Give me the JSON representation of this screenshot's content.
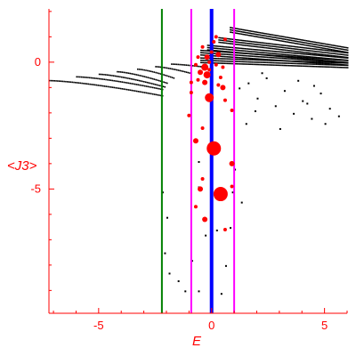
{
  "chart_data": {
    "type": "scatter",
    "title": "",
    "xlabel": "E",
    "ylabel": "<J3>",
    "xlim": [
      -7.2,
      6
    ],
    "ylim": [
      -9.9,
      2.1
    ],
    "x_ticks": [
      -5,
      0,
      5
    ],
    "x_tick_labels": [
      "-5",
      "0",
      "5"
    ],
    "y_ticks": [
      0,
      -5
    ],
    "y_tick_labels": [
      "0",
      "-5"
    ],
    "grid": false,
    "legend": "none",
    "colors": {
      "axis": "#ff0000",
      "black_points": "#000000",
      "red_points": "#ff0000",
      "line_green": "#008000",
      "line_magenta": "#ff00ff",
      "line_blue": "#0000ff"
    },
    "vertical_lines": [
      {
        "x": -2.2,
        "color": "#008000"
      },
      {
        "x": -0.9,
        "color": "#ff00ff"
      },
      {
        "x": 0.0,
        "color": "#0000ff"
      },
      {
        "x": 1.0,
        "color": "#ff00ff"
      }
    ],
    "black_fans": [
      {
        "x_start": -7.2,
        "x_end": -2.2,
        "y_start": -0.7,
        "y_end": -1.3
      },
      {
        "x_start": -6.0,
        "x_end": -2.2,
        "y_start": -0.55,
        "y_end": -1.05
      },
      {
        "x_start": -5.0,
        "x_end": -2.1,
        "y_start": -0.45,
        "y_end": -0.95
      },
      {
        "x_start": -4.2,
        "x_end": -2.0,
        "y_start": -0.35,
        "y_end": -0.8
      },
      {
        "x_start": -3.3,
        "x_end": -1.7,
        "y_start": -0.25,
        "y_end": -0.6
      },
      {
        "x_start": -2.5,
        "x_end": -1.0,
        "y_start": -0.15,
        "y_end": -0.4
      },
      {
        "x_start": -1.8,
        "x_end": -0.5,
        "y_start": -0.05,
        "y_end": -0.15
      }
    ],
    "black_bands": [
      {
        "x_start": -0.5,
        "x_end": 6.0,
        "y_start": 0.4,
        "y_end": 0.0
      },
      {
        "x_start": -0.2,
        "x_end": 6.0,
        "y_start": 0.6,
        "y_end": 0.1
      },
      {
        "x_start": 0.3,
        "x_end": 6.0,
        "y_start": 0.9,
        "y_end": 0.3
      },
      {
        "x_start": 0.8,
        "x_end": 6.0,
        "y_start": 1.3,
        "y_end": 0.5
      },
      {
        "x_start": -0.5,
        "x_end": 6.0,
        "y_start": 0.1,
        "y_end": -0.1
      }
    ],
    "black_scatter": [
      [
        1.2,
        -1.0
      ],
      [
        1.6,
        -0.8
      ],
      [
        2.0,
        -1.4
      ],
      [
        2.4,
        -0.6
      ],
      [
        2.8,
        -1.7
      ],
      [
        3.2,
        -1.1
      ],
      [
        3.6,
        -2.0
      ],
      [
        4.0,
        -1.5
      ],
      [
        4.4,
        -2.2
      ],
      [
        4.8,
        -1.2
      ],
      [
        5.2,
        -1.8
      ],
      [
        5.6,
        -2.1
      ],
      [
        1.5,
        -2.4
      ],
      [
        3.0,
        -2.6
      ],
      [
        4.5,
        -0.9
      ],
      [
        2.2,
        -0.4
      ],
      [
        3.8,
        -0.7
      ],
      [
        5.0,
        -2.4
      ],
      [
        1.9,
        -1.9
      ],
      [
        4.2,
        -1.6
      ],
      [
        -2.2,
        -5.1
      ],
      [
        -2.0,
        -6.1
      ],
      [
        -2.1,
        -7.5
      ],
      [
        -1.9,
        -8.3
      ],
      [
        -1.2,
        -9.0
      ],
      [
        -0.9,
        -7.8
      ],
      [
        -0.6,
        -9.0
      ],
      [
        -0.6,
        -4.9
      ],
      [
        -0.6,
        -3.9
      ],
      [
        0.4,
        -9.1
      ],
      [
        0.9,
        -5.1
      ],
      [
        0.8,
        -6.5
      ],
      [
        1.3,
        -5.5
      ],
      [
        1.0,
        -4.2
      ],
      [
        -1.5,
        -8.6
      ],
      [
        -0.3,
        -6.8
      ],
      [
        0.2,
        -6.6
      ],
      [
        0.6,
        -8.0
      ]
    ],
    "red_points": [
      [
        -0.5,
        -0.4,
        3
      ],
      [
        -0.3,
        -0.2,
        4
      ],
      [
        -0.1,
        -0.3,
        2
      ],
      [
        -0.4,
        0.6,
        2
      ],
      [
        0.1,
        0.8,
        2
      ],
      [
        0.3,
        0.3,
        3
      ],
      [
        0.5,
        -0.2,
        2
      ],
      [
        -0.7,
        -0.1,
        2
      ],
      [
        -0.2,
        0.2,
        3
      ],
      [
        0.0,
        0.4,
        2
      ],
      [
        0.2,
        1.0,
        2
      ],
      [
        0.6,
        0.9,
        2
      ],
      [
        -0.6,
        -0.7,
        2
      ],
      [
        -0.3,
        -0.8,
        3
      ],
      [
        0.4,
        -0.6,
        2
      ],
      [
        -0.2,
        -0.5,
        4
      ],
      [
        -0.9,
        -0.8,
        2
      ],
      [
        -0.1,
        -1.4,
        5
      ],
      [
        0.5,
        -1.0,
        3
      ],
      [
        0.6,
        -1.5,
        2
      ],
      [
        -0.9,
        -1.2,
        2
      ],
      [
        -1.0,
        -2.1,
        2
      ],
      [
        0.9,
        -1.9,
        2
      ],
      [
        -0.4,
        -2.6,
        2
      ],
      [
        -0.7,
        -3.1,
        3
      ],
      [
        0.1,
        -3.4,
        8
      ],
      [
        0.9,
        -4.0,
        3
      ],
      [
        -0.4,
        -4.6,
        2
      ],
      [
        0.4,
        -5.2,
        8
      ],
      [
        -0.5,
        -5.0,
        3
      ],
      [
        -0.3,
        -6.2,
        3
      ],
      [
        0.6,
        -6.6,
        2
      ],
      [
        -0.7,
        -5.7,
        2
      ],
      [
        0.9,
        -4.9,
        2
      ],
      [
        0.2,
        -0.1,
        2
      ],
      [
        -0.1,
        0.0,
        2
      ],
      [
        0.3,
        -0.9,
        2
      ],
      [
        -0.6,
        0.2,
        2
      ]
    ]
  }
}
